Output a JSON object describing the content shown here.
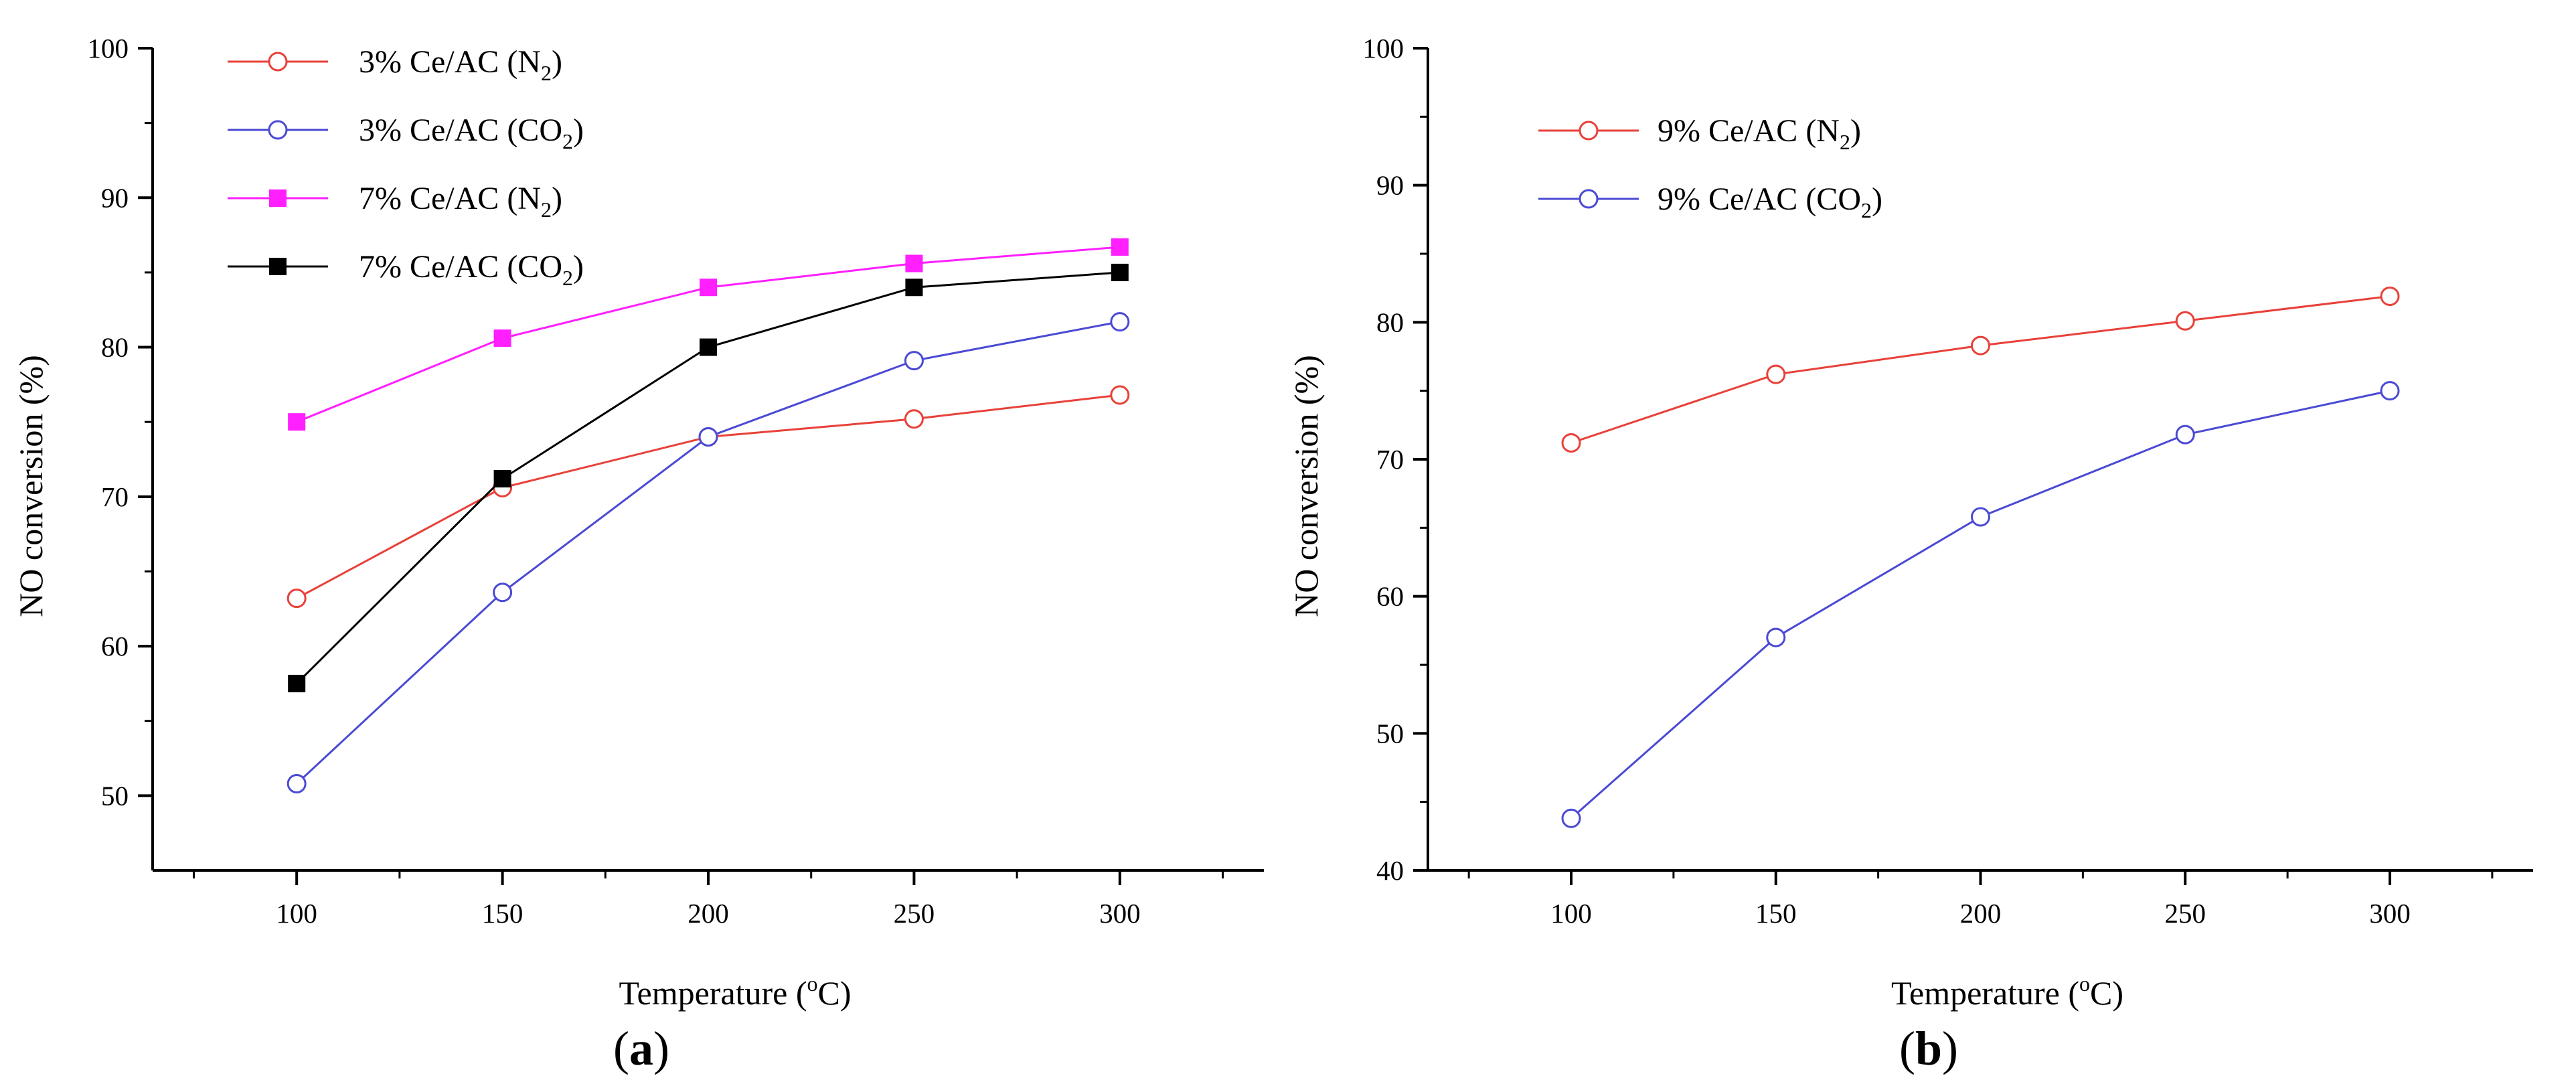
{
  "chart_data": [
    {
      "panel_label": "a",
      "type": "line",
      "xlabel_prefix": "Temperature (",
      "xlabel_sup": "o",
      "xlabel_suffix": "C)",
      "ylabel": "NO conversion (%)",
      "x": [
        100,
        150,
        200,
        250,
        300
      ],
      "x_ticks": [
        "100",
        "150",
        "200",
        "250",
        "300"
      ],
      "xlim": [
        65,
        335
      ],
      "y_ticks": [
        "50",
        "60",
        "70",
        "80",
        "90",
        "100"
      ],
      "ylim": [
        45,
        100
      ],
      "grid": false,
      "legend_position": "top-left",
      "series": [
        {
          "name_main": "3% Ce/AC (N",
          "name_sub": "2",
          "name_end": ")",
          "color": "#e8413a",
          "marker": "circle-open",
          "values": [
            63.2,
            70.6,
            74.0,
            75.2,
            76.8
          ]
        },
        {
          "name_main": "3% Ce/AC (CO",
          "name_sub": "2",
          "name_end": ")",
          "color": "#4a4ad4",
          "marker": "circle-open",
          "values": [
            50.8,
            63.6,
            74.0,
            79.1,
            81.7
          ]
        },
        {
          "name_main": "7% Ce/AC (N",
          "name_sub": "2",
          "name_end": ")",
          "color": "#ff1fff",
          "marker": "square-filled",
          "values": [
            75.0,
            80.6,
            84.0,
            85.6,
            86.7
          ]
        },
        {
          "name_main": "7% Ce/AC (CO",
          "name_sub": "2",
          "name_end": ")",
          "color": "#000000",
          "marker": "square-filled",
          "values": [
            57.5,
            71.2,
            80.0,
            84.0,
            85.0
          ]
        }
      ]
    },
    {
      "panel_label": "b",
      "type": "line",
      "xlabel_prefix": "Temperature (",
      "xlabel_sup": "o",
      "xlabel_suffix": "C)",
      "ylabel": "NO conversion (%)",
      "x": [
        100,
        150,
        200,
        250,
        300
      ],
      "x_ticks": [
        "100",
        "150",
        "200",
        "250",
        "300"
      ],
      "xlim": [
        65,
        335
      ],
      "y_ticks": [
        "40",
        "50",
        "60",
        "70",
        "80",
        "90",
        "100"
      ],
      "ylim": [
        40,
        100
      ],
      "grid": false,
      "legend_position": "top-left",
      "series": [
        {
          "name_main": "9% Ce/AC (N",
          "name_sub": "2",
          "name_end": ")",
          "color": "#e8413a",
          "marker": "circle-open",
          "values": [
            71.2,
            76.2,
            78.3,
            80.1,
            81.9
          ]
        },
        {
          "name_main": "9% Ce/AC (CO",
          "name_sub": "2",
          "name_end": ")",
          "color": "#4a4ad4",
          "marker": "circle-open",
          "values": [
            43.8,
            57.0,
            65.8,
            71.8,
            75.0
          ]
        }
      ]
    }
  ]
}
